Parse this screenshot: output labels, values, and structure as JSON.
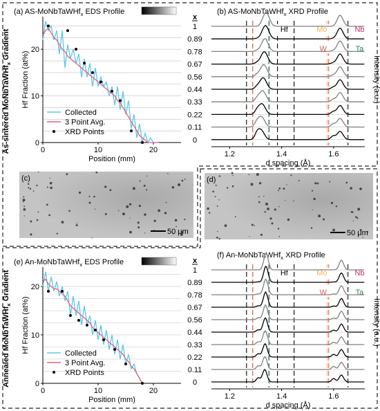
{
  "chart_data": [
    {
      "id": "a",
      "type": "line",
      "title": "(a) AS-MoNbTaWHf",
      "title_sub": "x",
      "title_suffix": " EDS Profile",
      "xlabel": "Position (mm)",
      "ylabel": "Hf Fraction (at%)",
      "xlim": [
        0,
        25
      ],
      "ylim": [
        0,
        27
      ],
      "xticks": [
        0,
        10,
        20
      ],
      "yticks": [
        0,
        10,
        20
      ],
      "grid": true,
      "legend_position": "bottom-left",
      "series": [
        {
          "name": "Collected",
          "color": "#5bc8ea",
          "x": [
            0,
            0.5,
            1,
            1.5,
            2,
            2.5,
            3,
            3.5,
            4,
            4.5,
            5,
            5.5,
            6,
            6.5,
            7,
            7.5,
            8,
            8.5,
            9,
            9.5,
            10,
            10.5,
            11,
            11.5,
            12,
            12.5,
            13,
            13.5,
            14,
            14.5,
            15,
            15.5,
            16,
            16.5,
            17,
            17.5,
            18,
            18.5,
            19,
            19.5,
            20,
            21
          ],
          "y": [
            22,
            26,
            24,
            25,
            22,
            24,
            19,
            24,
            16,
            21,
            18,
            20,
            17,
            19,
            14,
            18,
            14,
            17,
            12,
            16,
            12,
            14,
            12,
            13,
            10,
            12,
            8,
            12,
            7,
            11,
            6,
            9,
            3,
            6,
            1,
            4,
            0,
            2,
            0,
            1,
            0,
            0
          ]
        },
        {
          "name": "3 Point Avg.",
          "color": "#e0607e",
          "x": [
            0,
            0.5,
            1,
            1.5,
            2,
            2.5,
            3,
            3.5,
            4,
            4.5,
            5,
            5.5,
            6,
            6.5,
            7,
            7.5,
            8,
            8.5,
            9,
            9.5,
            10,
            10.5,
            11,
            11.5,
            12,
            12.5,
            13,
            13.5,
            14,
            14.5,
            15,
            15.5,
            16,
            16.5,
            17,
            17.5,
            18,
            18.5,
            19,
            19.5,
            20,
            21
          ],
          "y": [
            23,
            24,
            24.5,
            23.5,
            22.5,
            22,
            21,
            20,
            19.5,
            18.5,
            18,
            17.5,
            17,
            16.5,
            16,
            15.5,
            15,
            14.5,
            14,
            13.5,
            13,
            12.5,
            12,
            11.5,
            11,
            10.5,
            10,
            9,
            8.5,
            7.5,
            6.5,
            5.5,
            4.5,
            3.5,
            2.5,
            1.5,
            1,
            0.5,
            0,
            0,
            0,
            0
          ]
        },
        {
          "name": "XRD Points",
          "color": "#000000",
          "marker": "dot",
          "x": [
            1,
            4.5,
            6,
            7.5,
            9,
            10.5,
            12.5,
            14,
            16,
            18
          ],
          "y": [
            25,
            24,
            20,
            17,
            15,
            13,
            11,
            9,
            2.5,
            0
          ]
        }
      ]
    },
    {
      "id": "b",
      "type": "line",
      "title": "(b) AS-MoNbTaWHf",
      "title_sub": "x",
      "title_suffix": " XRD Profile",
      "xlabel": "d spacing (Å)",
      "ylabel": "Intensity (a.u.)",
      "xlim": [
        1.13,
        1.72
      ],
      "xticks": [
        1.2,
        1.4,
        1.6
      ],
      "x_header": "x",
      "x_values_label": [
        "1",
        "0.89",
        "0.78",
        "0.67",
        "0.56",
        "0.44",
        "0.33",
        "0.22",
        "0.11",
        "0"
      ],
      "reference_lines": [
        {
          "name": "Hf",
          "color": "#000000",
          "x": [
            1.265,
            1.384,
            1.448
          ]
        },
        {
          "name": "Mo",
          "color": "#f2b45a",
          "x": [
            1.288,
            1.575
          ]
        },
        {
          "name": "W",
          "color": "#e05c4b",
          "x": [
            1.289,
            1.581
          ]
        },
        {
          "name": "Nb",
          "color": "#c42a6b",
          "x": [
            1.351,
            1.654
          ]
        },
        {
          "name": "Ta",
          "color": "#1a8a4a",
          "x": [
            1.352,
            1.656
          ]
        }
      ]
    },
    {
      "id": "e",
      "type": "line",
      "title": "(e) An-MoNbTaWHf",
      "title_sub": "x",
      "title_suffix": " EDS Profile",
      "xlabel": "Position (mm)",
      "ylabel": "Hf Fraction (at%)",
      "xlim": [
        0,
        25
      ],
      "ylim": [
        0,
        24
      ],
      "xticks": [
        0,
        10,
        20
      ],
      "yticks": [
        0,
        10,
        20
      ],
      "grid": true,
      "legend_position": "bottom-left",
      "series": [
        {
          "name": "Collected",
          "color": "#5bc8ea",
          "x": [
            0,
            0.5,
            1,
            1.5,
            2,
            2.5,
            3,
            3.5,
            4,
            4.5,
            5,
            5.5,
            6,
            6.5,
            7,
            7.5,
            8,
            8.5,
            9,
            9.5,
            10,
            10.5,
            11,
            11.5,
            12,
            12.5,
            13,
            13.5,
            14,
            14.5,
            15,
            15.5,
            16,
            16.5,
            17,
            17.5,
            18
          ],
          "y": [
            20,
            23,
            19,
            22,
            19,
            21,
            18,
            20,
            17,
            19,
            14,
            18,
            14,
            17,
            12,
            16,
            12,
            14,
            10,
            13,
            9,
            12,
            8,
            11,
            7,
            10,
            6,
            9,
            5,
            8,
            4,
            6,
            3,
            4,
            2,
            1,
            0
          ]
        },
        {
          "name": "3 Point Avg.",
          "color": "#e0607e",
          "x": [
            0,
            0.5,
            1,
            1.5,
            2,
            2.5,
            3,
            3.5,
            4,
            4.5,
            5,
            5.5,
            6,
            6.5,
            7,
            7.5,
            8,
            8.5,
            9,
            9.5,
            10,
            10.5,
            11,
            11.5,
            12,
            12.5,
            13,
            13.5,
            14,
            14.5,
            15,
            15.5,
            16,
            16.5,
            17,
            17.5,
            18
          ],
          "y": [
            21,
            21.5,
            20.5,
            20,
            19.5,
            19.5,
            19,
            18.5,
            18,
            17,
            16,
            15.5,
            15,
            14.5,
            14,
            13.5,
            13,
            12.5,
            11.5,
            11,
            10.5,
            10,
            9.5,
            9,
            8.5,
            8,
            7.5,
            7,
            6.5,
            6,
            5,
            4.5,
            3.5,
            3,
            2,
            1,
            0
          ]
        },
        {
          "name": "XRD Points",
          "color": "#000000",
          "marker": "dot",
          "x": [
            1,
            3.5,
            5,
            6.5,
            8,
            9.5,
            11,
            13,
            15,
            18
          ],
          "y": [
            19,
            19,
            14,
            13,
            12,
            11,
            9,
            7,
            4,
            0
          ]
        }
      ]
    },
    {
      "id": "f",
      "type": "line",
      "title": "(f) An-MoNbTaWHf",
      "title_sub": "x",
      "title_suffix": " XRD Profile",
      "xlabel": "d spacing (Å)",
      "ylabel": "Intensity (a.u.)",
      "xlim": [
        1.13,
        1.72
      ],
      "xticks": [
        1.2,
        1.4,
        1.6
      ],
      "x_header": "x",
      "x_values_label": [
        "1",
        "0.89",
        "0.78",
        "0.67",
        "0.56",
        "0.44",
        "0.33",
        "0.22",
        "0.11",
        "0"
      ],
      "reference_lines": [
        {
          "name": "Hf",
          "color": "#000000",
          "x": [
            1.265,
            1.384,
            1.448
          ]
        },
        {
          "name": "Mo",
          "color": "#f2b45a",
          "x": [
            1.288,
            1.575
          ]
        },
        {
          "name": "W",
          "color": "#e05c4b",
          "x": [
            1.289,
            1.581
          ]
        },
        {
          "name": "Nb",
          "color": "#c42a6b",
          "x": [
            1.351,
            1.654
          ]
        },
        {
          "name": "Ta",
          "color": "#1a8a4a",
          "x": [
            1.352,
            1.656
          ]
        }
      ]
    }
  ],
  "micrographs": {
    "c": {
      "label": "(c)",
      "scale_bar": "50 μm"
    },
    "d": {
      "label": "(d)",
      "scale_bar": "50 μm"
    }
  },
  "side_labels": {
    "top": "As-sintered MoNbTaWHf",
    "top_sub": "x",
    "top_suffix": " Gradient",
    "bottom": "Annealed MoNbTaWHf",
    "bottom_sub": "x",
    "bottom_suffix": " Gradient"
  },
  "colors": {
    "collected": "#5bc8ea",
    "avg": "#e0607e",
    "grid": "#bfbfbf",
    "hf": "#000000",
    "mo": "#f2b45a",
    "w": "#e05c4b",
    "nb": "#c42a6b",
    "ta": "#1a8a4a"
  }
}
